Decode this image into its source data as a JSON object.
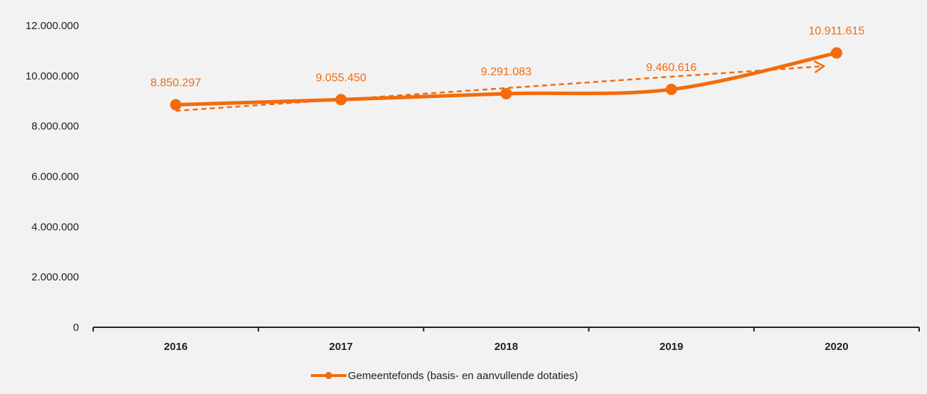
{
  "chart_data": {
    "type": "line",
    "title": "",
    "xlabel": "",
    "ylabel": "",
    "categories": [
      "2016",
      "2017",
      "2018",
      "2019",
      "2020"
    ],
    "ylim": [
      0,
      12000000
    ],
    "yticks": [
      0,
      2000000,
      4000000,
      6000000,
      8000000,
      10000000,
      12000000
    ],
    "ytick_labels": [
      "0",
      "2.000.000",
      "4.000.000",
      "6.000.000",
      "8.000.000",
      "10.000.000",
      "12.000.000"
    ],
    "series": [
      {
        "name": "Gemeentefonds (basis- en aanvullende dotaties)",
        "values": [
          8850297,
          9055450,
          9291083,
          9460616,
          10911615
        ],
        "data_labels": [
          "8.850.297",
          "9.055.450",
          "9.291.083",
          "9.460.616",
          "10.911.615"
        ],
        "color": "#f26c0d",
        "marker": "circle",
        "smooth": true
      }
    ],
    "trendline": {
      "type": "linear",
      "style": "dashed-arrow",
      "color": "#f26c0d"
    },
    "grid": false,
    "legend": "bottom-center"
  },
  "colors": {
    "background": "#f2f2f2",
    "accent": "#f26c0d",
    "axis": "#222222"
  }
}
